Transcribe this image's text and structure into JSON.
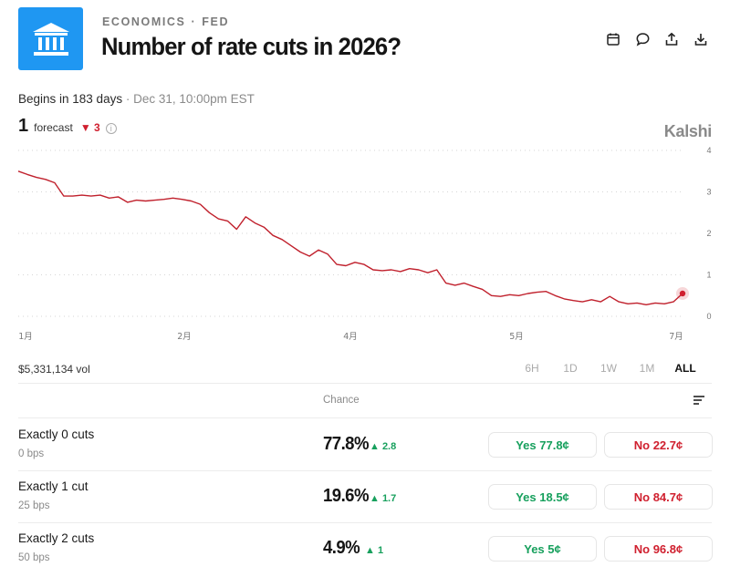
{
  "header": {
    "icon": "bank-building-icon",
    "category": "ECONOMICS",
    "subcategory": "FED",
    "title": "Number of rate cuts in 2026?",
    "actions": [
      "calendar-icon",
      "comment-icon",
      "share-icon",
      "download-icon"
    ]
  },
  "begins": {
    "text": "Begins in 183 days",
    "separator": "·",
    "when": "Dec 31, 10:00pm EST"
  },
  "forecast": {
    "value": "1",
    "label": "forecast",
    "delta": "▼ 3",
    "info": "i"
  },
  "brand": "Kalshi",
  "chart_data": {
    "type": "line",
    "line_color": "#c0202c",
    "ylim": [
      0,
      4
    ],
    "y_ticks": [
      "4",
      "3",
      "2",
      "1",
      "0"
    ],
    "x_ticks": [
      "1月",
      "2月",
      "4月",
      "5月",
      "7月"
    ],
    "y_axis_side": "right",
    "grid": "dotted-horizontal",
    "series": [
      {
        "values": [
          3.5,
          3.42,
          3.35,
          3.3,
          3.22,
          2.9,
          2.9,
          2.92,
          2.9,
          2.92,
          2.85,
          2.88,
          2.75,
          2.8,
          2.78,
          2.8,
          2.82,
          2.85,
          2.82,
          2.78,
          2.7,
          2.5,
          2.35,
          2.3,
          2.1,
          2.4,
          2.25,
          2.15,
          1.95,
          1.85,
          1.7,
          1.55,
          1.45,
          1.6,
          1.5,
          1.25,
          1.22,
          1.3,
          1.25,
          1.12,
          1.1,
          1.12,
          1.08,
          1.15,
          1.12,
          1.05,
          1.12,
          0.8,
          0.75,
          0.8,
          0.72,
          0.65,
          0.5,
          0.48,
          0.52,
          0.5,
          0.55,
          0.58,
          0.6,
          0.5,
          0.42,
          0.38,
          0.35,
          0.4,
          0.35,
          0.48,
          0.35,
          0.3,
          0.32,
          0.28,
          0.32,
          0.3,
          0.35,
          0.55
        ]
      }
    ],
    "current_point_color": "#d0202f"
  },
  "volume": "$5,331,134 vol",
  "ranges": [
    {
      "label": "6H",
      "active": false
    },
    {
      "label": "1D",
      "active": false
    },
    {
      "label": "1W",
      "active": false
    },
    {
      "label": "1M",
      "active": false
    },
    {
      "label": "ALL",
      "active": true
    }
  ],
  "table": {
    "chance_label": "Chance",
    "sort_icon": "sort-lines-icon",
    "rows": [
      {
        "name": "Exactly 0 cuts",
        "sub": "0 bps",
        "pct": "77.8%",
        "change": "▲ 2.8",
        "yes": "Yes 77.8¢",
        "no": "No 22.7¢"
      },
      {
        "name": "Exactly 1 cut",
        "sub": "25 bps",
        "pct": "19.6%",
        "change": "▲ 1.7",
        "yes": "Yes 18.5¢",
        "no": "No 84.7¢"
      },
      {
        "name": "Exactly 2 cuts",
        "sub": "50 bps",
        "pct": "4.9%",
        "change": "▲ 1",
        "yes": "Yes 5¢",
        "no": "No 96.8¢"
      }
    ]
  }
}
